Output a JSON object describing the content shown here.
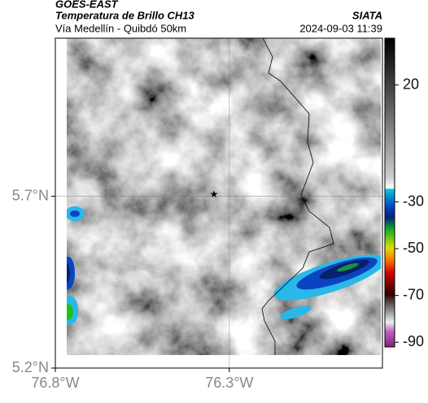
{
  "header": {
    "title": "GOES-EAST",
    "subtitle": "Temperatura de Brillo CH13",
    "route": "Vía Medellín - Quibdó 50km",
    "source": "SIATA",
    "datetime": "2024-09-03 11:39"
  },
  "axes": {
    "xlim": [
      -76.8,
      -75.86
    ],
    "ylim": [
      5.2,
      6.16
    ],
    "xticks": [
      {
        "value": -76.8,
        "label": "76.8°W"
      },
      {
        "value": -76.3,
        "label": "76.3°W"
      }
    ],
    "yticks": [
      {
        "value": 5.2,
        "label": "5.2°N"
      },
      {
        "value": 5.7,
        "label": "5.7°N"
      }
    ]
  },
  "colorbar": {
    "lim": [
      40,
      -92
    ],
    "ticks": [
      20,
      -30,
      -50,
      -70,
      -90
    ]
  }
}
